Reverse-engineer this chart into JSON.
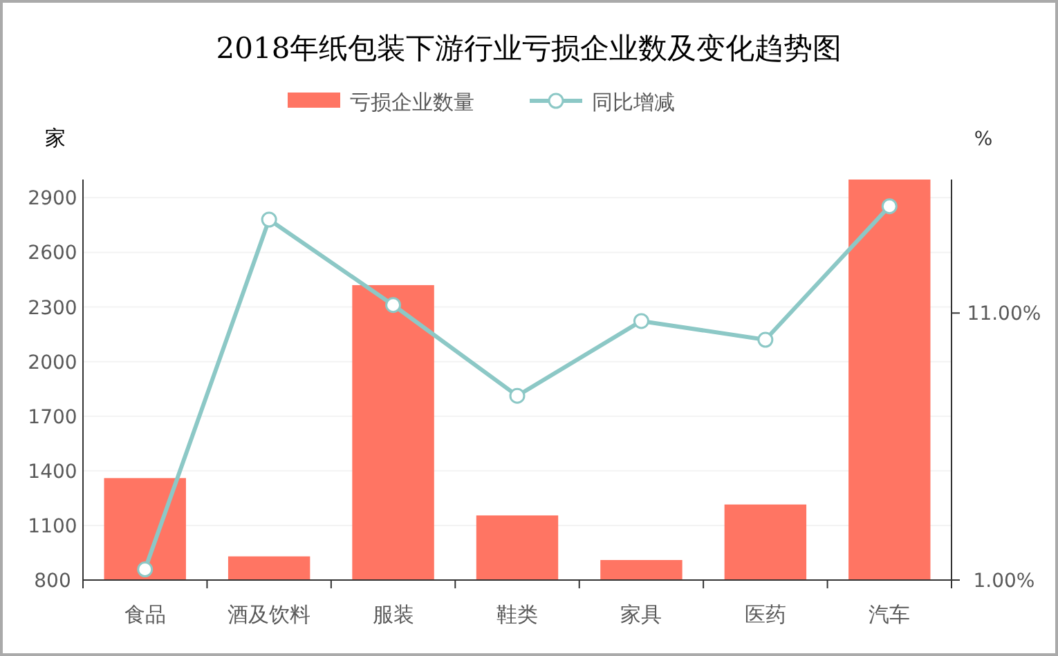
{
  "chart_data": {
    "type": "bar",
    "title": "2018年纸包装下游行业亏损企业数及变化趋势图",
    "ylabel": "家",
    "y2label": "%",
    "legend": "top",
    "grid": "y",
    "categories": [
      "食品",
      "酒及饮料",
      "服装",
      "鞋类",
      "家具",
      "医药",
      "汽车"
    ],
    "series": [
      {
        "name": "亏损企业数量",
        "color": "#ff7563",
        "values": [
          1360,
          930,
          2420,
          1155,
          910,
          1215,
          3000
        ]
      },
      {
        "name": "同比增减",
        "type": "line",
        "axis": "y2",
        "color": "#8cc8c6",
        "marker": "circle",
        "values": [
          1.4,
          14.5,
          11.3,
          7.9,
          10.7,
          10.0,
          15.0
        ]
      }
    ],
    "ylim": [
      800,
      3000
    ],
    "yticks": [
      800,
      1100,
      1400,
      1700,
      2000,
      2300,
      2600,
      2900
    ],
    "y2lim": [
      1,
      16
    ],
    "y2ticks": [
      {
        "value": 1,
        "label": "1.00%"
      },
      {
        "value": 11,
        "label": "11.00%"
      }
    ]
  }
}
